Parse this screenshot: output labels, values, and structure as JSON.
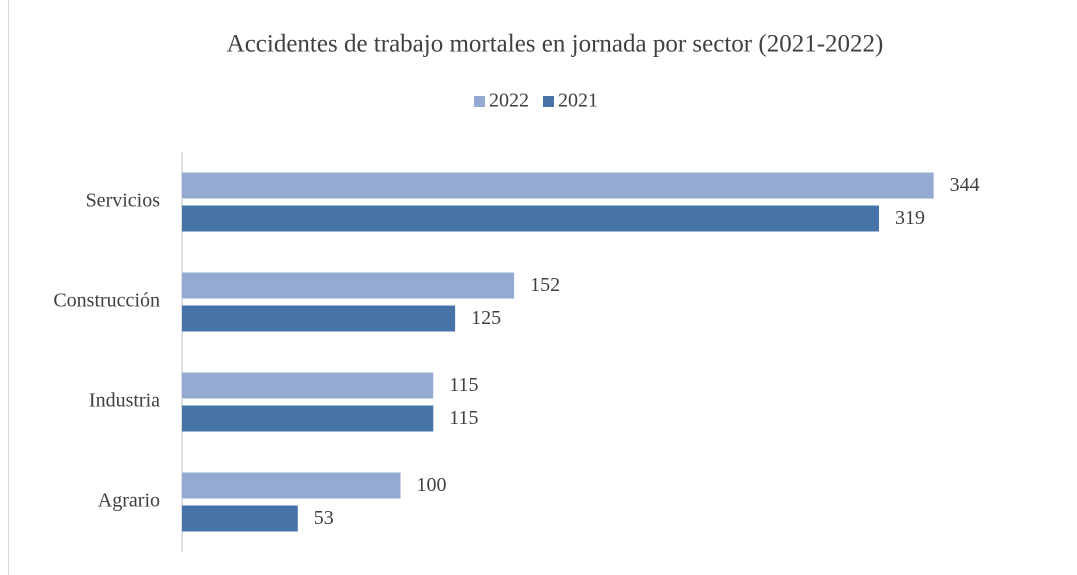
{
  "chart_data": {
    "type": "bar",
    "orientation": "horizontal",
    "title": "Accidentes de trabajo mortales en jornada por sector (2021-2022)",
    "categories": [
      "Servicios",
      "Construcción",
      "Industria",
      "Agrario"
    ],
    "series": [
      {
        "name": "2022",
        "color": "#95aad3",
        "values": [
          344,
          152,
          115,
          100
        ]
      },
      {
        "name": "2021",
        "color": "#4674a8",
        "values": [
          319,
          125,
          115,
          53
        ]
      }
    ],
    "xlim": [
      0,
      400
    ],
    "legend": "top"
  }
}
